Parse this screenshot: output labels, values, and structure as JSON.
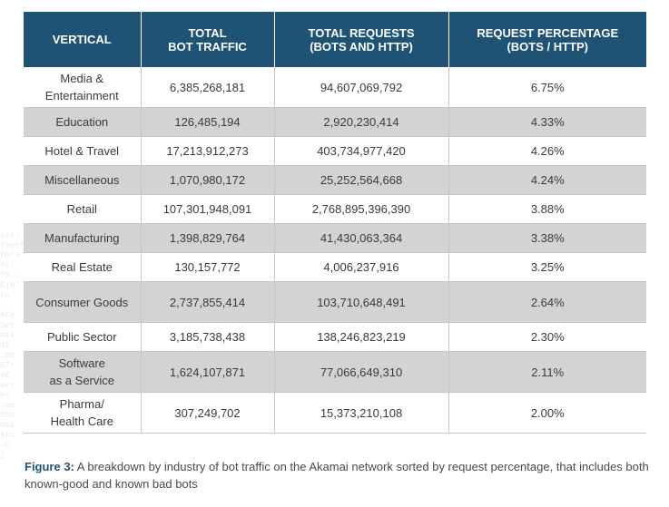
{
  "table": {
    "headers": [
      "VERTICAL",
      "TOTAL\nBOT TRAFFIC",
      "TOTAL REQUESTS\n(BOTS AND HTTP)",
      "REQUEST PERCENTAGE\n(BOTS / HTTP)"
    ],
    "rows": [
      {
        "vertical": "Media &\nEntertainment",
        "bot_traffic": "6,385,268,181",
        "total_requests": "94,607,069,792",
        "percentage": "6.75%"
      },
      {
        "vertical": "Education",
        "bot_traffic": "126,485,194",
        "total_requests": "2,920,230,414",
        "percentage": "4.33%"
      },
      {
        "vertical": "Hotel & Travel",
        "bot_traffic": "17,213,912,273",
        "total_requests": "403,734,977,420",
        "percentage": "4.26%"
      },
      {
        "vertical": "Miscellaneous",
        "bot_traffic": "1,070,980,172",
        "total_requests": "25,252,564,668",
        "percentage": "4.24%"
      },
      {
        "vertical": "Retail",
        "bot_traffic": "107,301,948,091",
        "total_requests": "2,768,895,396,390",
        "percentage": "3.88%"
      },
      {
        "vertical": "Manufacturing",
        "bot_traffic": "1,398,829,764",
        "total_requests": "41,430,063,364",
        "percentage": "3.38%"
      },
      {
        "vertical": "Real Estate",
        "bot_traffic": "130,157,772",
        "total_requests": "4,006,237,916",
        "percentage": "3.25%"
      },
      {
        "vertical": "Consumer Goods",
        "bot_traffic": "2,737,855,414",
        "total_requests": "103,710,648,491",
        "percentage": "2.64%"
      },
      {
        "vertical": "Public Sector",
        "bot_traffic": "3,185,738,438",
        "total_requests": "138,246,823,219",
        "percentage": "2.30%"
      },
      {
        "vertical": "Software\nas a Service",
        "bot_traffic": "1,624,107,871",
        "total_requests": "77,066,649,310",
        "percentage": "2.11%"
      },
      {
        "vertical": "Pharma/\nHealth Care",
        "bot_traffic": "307,249,702",
        "total_requests": "15,373,210,108",
        "percentage": "2.00%"
      }
    ]
  },
  "caption": {
    "label": "Figure 3:",
    "text": " A breakdown by industry of bot traffic on the Akamai network sorted by request percentage, that includes both known-good and known bad bots"
  },
  "colors": {
    "header_bg": "#1f5376",
    "stripe": "#d3d3d3",
    "caption_label": "#1f5376"
  }
}
